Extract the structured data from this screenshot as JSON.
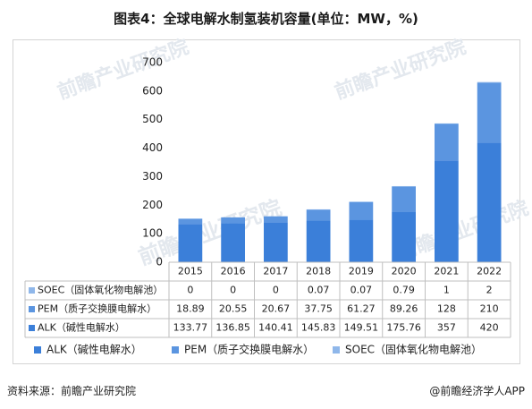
{
  "title": "图表4：全球电解水制氢装机容量(单位：MW，%)",
  "source_text": "资料来源：前瞻产业研究院",
  "brand_text": "@前瞻经济学人APP",
  "watermark": "前瞻产业研究院",
  "colors": {
    "alk": "#3b7fd9",
    "pem": "#5b95e0",
    "soec": "#8fb7ea",
    "grid": "#d9d9d9",
    "table_line": "#bfbfbf"
  },
  "chart_data": {
    "type": "bar",
    "stacked": true,
    "categories": [
      "2015",
      "2016",
      "2017",
      "2018",
      "2019",
      "2020",
      "2021",
      "2022"
    ],
    "series": [
      {
        "name": "ALK（碱性电解水）",
        "color_key": "alk",
        "values": [
          "133.77",
          "136.85",
          "140.41",
          "145.83",
          "149.51",
          "175.76",
          "357",
          "420"
        ]
      },
      {
        "name": "PEM（质子交换膜电解水）",
        "color_key": "pem",
        "values": [
          "18.89",
          "20.55",
          "20.67",
          "37.75",
          "61.27",
          "89.26",
          "128",
          "210"
        ]
      },
      {
        "name": "SOEC（固体氧化物电解池）",
        "color_key": "soec",
        "values": [
          "0",
          "0",
          "0",
          "0.07",
          "0.07",
          "0.79",
          "1",
          "2"
        ]
      }
    ],
    "table_order": [
      2,
      1,
      0
    ],
    "legend": [
      "ALK（碱性电解水）",
      "PEM（质子交换膜电解水）",
      "SOEC（固体氧化物电解池）"
    ],
    "y_ticks": [
      "0",
      "100",
      "200",
      "300",
      "400",
      "500",
      "600",
      "700"
    ],
    "ylim": [
      0,
      700
    ],
    "grid": false,
    "legend_position": "bottom"
  }
}
